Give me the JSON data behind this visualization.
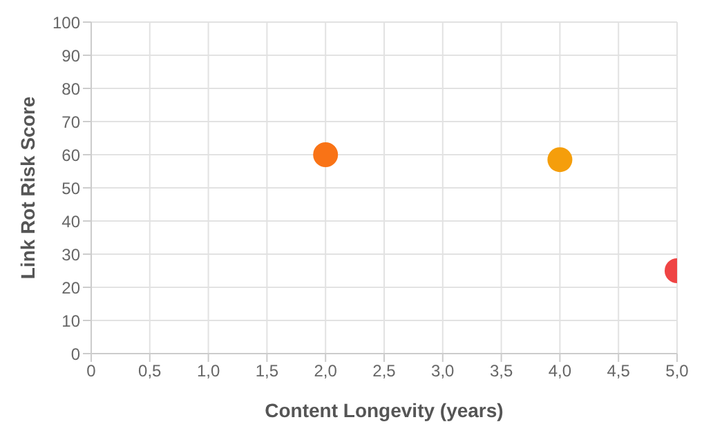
{
  "chart_data": {
    "type": "scatter",
    "xlabel": "Content Longevity (years)",
    "ylabel": "Link Rot Risk Score",
    "x": [
      2.0,
      4.0,
      5.0
    ],
    "values": [
      60,
      58.5,
      25
    ],
    "colors": [
      "#f97316",
      "#f59e0b",
      "#ef4444"
    ],
    "xlim": [
      0,
      5
    ],
    "xticks": [
      0,
      {
        "value": 0.5,
        "label": "0,5"
      },
      {
        "value": 1,
        "label": "1,0"
      },
      {
        "value": 1.5,
        "label": "1,5"
      },
      {
        "value": 2,
        "label": "2,0"
      },
      {
        "value": 2.5,
        "label": "2,5"
      },
      {
        "value": 3,
        "label": "3,0"
      },
      {
        "value": 3.5,
        "label": "3,5"
      },
      {
        "value": 4,
        "label": "4,0"
      },
      {
        "value": 4.5,
        "label": "4,5"
      },
      {
        "value": 5,
        "label": "5,0"
      }
    ],
    "ylim": [
      0,
      100
    ],
    "yticks": [
      0,
      10,
      20,
      30,
      40,
      50,
      60,
      70,
      80,
      90,
      100
    ],
    "grid": true,
    "marker": "circle",
    "legend": false
  }
}
